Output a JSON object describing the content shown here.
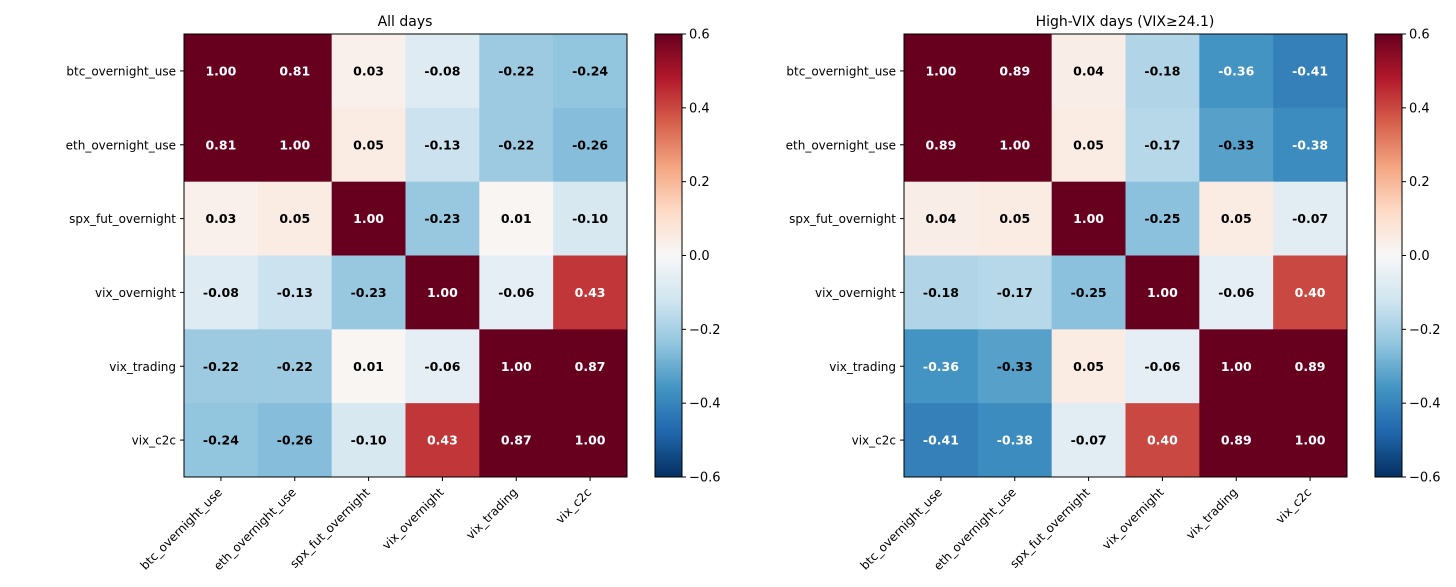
{
  "chart_data": [
    {
      "type": "heatmap",
      "title": "All days",
      "labels": [
        "btc_overnight_use",
        "eth_overnight_use",
        "spx_fut_overnight",
        "vix_overnight",
        "vix_trading",
        "vix_c2c"
      ],
      "values": [
        [
          1.0,
          0.81,
          0.03,
          -0.08,
          -0.22,
          -0.24
        ],
        [
          0.81,
          1.0,
          0.05,
          -0.13,
          -0.22,
          -0.26
        ],
        [
          0.03,
          0.05,
          1.0,
          -0.23,
          0.01,
          -0.1
        ],
        [
          -0.08,
          -0.13,
          -0.23,
          1.0,
          -0.06,
          0.43
        ],
        [
          -0.22,
          -0.22,
          0.01,
          -0.06,
          1.0,
          0.87
        ],
        [
          -0.24,
          -0.26,
          -0.1,
          0.43,
          0.87,
          1.0
        ]
      ],
      "cell_labels": [
        [
          "1.00",
          "0.81",
          "0.03",
          "-0.08",
          "-0.22",
          "-0.24"
        ],
        [
          "0.81",
          "1.00",
          "0.05",
          "-0.13",
          "-0.22",
          "-0.26"
        ],
        [
          "0.03",
          "0.05",
          "1.00",
          "-0.23",
          "0.01",
          "-0.10"
        ],
        [
          "-0.08",
          "-0.13",
          "-0.23",
          "1.00",
          "-0.06",
          "0.43"
        ],
        [
          "-0.22",
          "-0.22",
          "0.01",
          "-0.06",
          "1.00",
          "0.87"
        ],
        [
          "-0.24",
          "-0.26",
          "-0.10",
          "0.43",
          "0.87",
          "1.00"
        ]
      ],
      "colorscale": "RdBu_r",
      "vmin": -0.6,
      "vmax": 0.6,
      "colorbar_ticks": [
        0.6,
        0.4,
        0.2,
        0.0,
        -0.2,
        -0.4,
        -0.6
      ],
      "colorbar_tick_labels": [
        "0.6",
        "0.4",
        "0.2",
        "0.0",
        "−0.2",
        "−0.4",
        "−0.6"
      ]
    },
    {
      "type": "heatmap",
      "title": "High-VIX days (VIX≥24.1)",
      "labels": [
        "btc_overnight_use",
        "eth_overnight_use",
        "spx_fut_overnight",
        "vix_overnight",
        "vix_trading",
        "vix_c2c"
      ],
      "values": [
        [
          1.0,
          0.89,
          0.04,
          -0.18,
          -0.36,
          -0.41
        ],
        [
          0.89,
          1.0,
          0.05,
          -0.17,
          -0.33,
          -0.38
        ],
        [
          0.04,
          0.05,
          1.0,
          -0.25,
          0.05,
          -0.07
        ],
        [
          -0.18,
          -0.17,
          -0.25,
          1.0,
          -0.06,
          0.4
        ],
        [
          -0.36,
          -0.33,
          0.05,
          -0.06,
          1.0,
          0.89
        ],
        [
          -0.41,
          -0.38,
          -0.07,
          0.4,
          0.89,
          1.0
        ]
      ],
      "cell_labels": [
        [
          "1.00",
          "0.89",
          "0.04",
          "-0.18",
          "-0.36",
          "-0.41"
        ],
        [
          "0.89",
          "1.00",
          "0.05",
          "-0.17",
          "-0.33",
          "-0.38"
        ],
        [
          "0.04",
          "0.05",
          "1.00",
          "-0.25",
          "0.05",
          "-0.07"
        ],
        [
          "-0.18",
          "-0.17",
          "-0.25",
          "1.00",
          "-0.06",
          "0.40"
        ],
        [
          "-0.36",
          "-0.33",
          "0.05",
          "-0.06",
          "1.00",
          "0.89"
        ],
        [
          "-0.41",
          "-0.38",
          "-0.07",
          "0.40",
          "0.89",
          "1.00"
        ]
      ],
      "colorscale": "RdBu_r",
      "vmin": -0.6,
      "vmax": 0.6,
      "colorbar_ticks": [
        0.6,
        0.4,
        0.2,
        0.0,
        -0.2,
        -0.4,
        -0.6
      ],
      "colorbar_tick_labels": [
        "0.6",
        "0.4",
        "0.2",
        "0.0",
        "−0.2",
        "−0.4",
        "−0.6"
      ]
    }
  ]
}
